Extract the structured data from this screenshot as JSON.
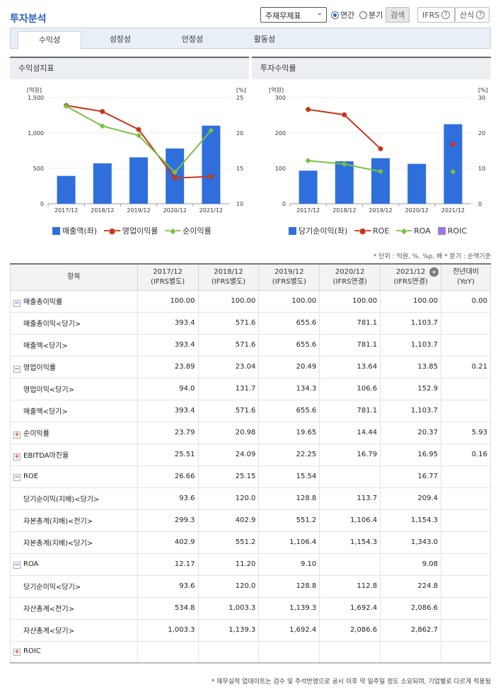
{
  "header": {
    "title": "투자분석",
    "select_value": "주재무제표",
    "radio_annual": "연간",
    "radio_quarter": "분기",
    "search_button": "검색",
    "ifrs_button": "IFRS",
    "formula_button": "산식",
    "help_glyph": "?"
  },
  "tabs": [
    "수익성",
    "성장성",
    "안정성",
    "활동성"
  ],
  "chart1": {
    "panel_title": "수익성지표",
    "left_unit": "[억원]",
    "right_unit": "[%]",
    "legend": [
      "매출액(좌)",
      "영업이익률",
      "순이익률"
    ]
  },
  "chart2": {
    "panel_title": "투자수익률",
    "left_unit": "[억원]",
    "right_unit": "[%]",
    "legend": [
      "당기순이익(좌)",
      "ROE",
      "ROA",
      "ROIC"
    ]
  },
  "chart_data": [
    {
      "type": "bar",
      "title": "수익성지표",
      "categories": [
        "2017/12",
        "2018/12",
        "2019/12",
        "2020/12",
        "2021/12"
      ],
      "series": [
        {
          "name": "매출액(좌)",
          "type": "bar",
          "axis": "left",
          "color": "#2f6fdc",
          "values": [
            393.4,
            571.6,
            655.6,
            781.1,
            1103.7
          ]
        },
        {
          "name": "영업이익률",
          "type": "line",
          "axis": "right",
          "color": "#c8361c",
          "values": [
            23.89,
            23.04,
            20.49,
            13.64,
            13.85
          ]
        },
        {
          "name": "순이익률",
          "type": "line",
          "axis": "right",
          "color": "#7ac143",
          "values": [
            23.79,
            20.98,
            19.65,
            14.44,
            20.37
          ]
        }
      ],
      "left_ylim": [
        0,
        1500
      ],
      "left_ticks": [
        "0",
        "500",
        "1,000",
        "1,500"
      ],
      "right_ylim": [
        10,
        25
      ],
      "right_ticks": [
        "10",
        "15",
        "20",
        "25"
      ]
    },
    {
      "type": "bar",
      "title": "투자수익률",
      "categories": [
        "2017/12",
        "2018/12",
        "2019/12",
        "2020/12",
        "2021/12"
      ],
      "series": [
        {
          "name": "당기순이익(좌)",
          "type": "bar",
          "axis": "left",
          "color": "#2f6fdc",
          "values": [
            93.6,
            120.0,
            128.8,
            112.8,
            224.8
          ]
        },
        {
          "name": "ROE",
          "type": "line",
          "axis": "right",
          "color": "#c8361c",
          "values": [
            26.66,
            25.15,
            15.54,
            null,
            16.77
          ]
        },
        {
          "name": "ROA",
          "type": "line",
          "axis": "right",
          "color": "#7ac143",
          "values": [
            12.17,
            11.2,
            9.1,
            null,
            9.08
          ]
        },
        {
          "name": "ROIC",
          "type": "line",
          "axis": "right",
          "color": "#9b7ad8",
          "values": [
            null,
            null,
            null,
            null,
            null
          ]
        }
      ],
      "left_ylim": [
        0,
        300
      ],
      "left_ticks": [
        "0",
        "100",
        "200",
        "300"
      ],
      "right_ylim": [
        0,
        30
      ],
      "right_ticks": [
        "0",
        "10",
        "20",
        "30"
      ]
    }
  ],
  "note": "* 단위 : 억원, %, %p, 배    * 분기 : 순액기준",
  "table": {
    "headers": [
      "항목",
      "2017/12\n(IFRS별도)",
      "2018/12\n(IFRS별도)",
      "2019/12\n(IFRS별도)",
      "2020/12\n(IFRS연결)",
      "2021/12\n(IFRS연결)",
      "전년대비\n(YoY)"
    ],
    "rows": [
      {
        "label": "매출총이익률",
        "kind": "minus",
        "vals": [
          "100.00",
          "100.00",
          "100.00",
          "100.00",
          "100.00",
          "0.00"
        ]
      },
      {
        "label": "매출총이익<당기>",
        "kind": "sub",
        "vals": [
          "393.4",
          "571.6",
          "655.6",
          "781.1",
          "1,103.7",
          ""
        ]
      },
      {
        "label": "매출액<당기>",
        "kind": "sub",
        "vals": [
          "393.4",
          "571.6",
          "655.6",
          "781.1",
          "1,103.7",
          ""
        ]
      },
      {
        "label": "영업이익률",
        "kind": "minus",
        "vals": [
          "23.89",
          "23.04",
          "20.49",
          "13.64",
          "13.85",
          "0.21"
        ]
      },
      {
        "label": "영업이익<당기>",
        "kind": "sub",
        "vals": [
          "94.0",
          "131.7",
          "134.3",
          "106.6",
          "152.9",
          ""
        ]
      },
      {
        "label": "매출액<당기>",
        "kind": "sub",
        "vals": [
          "393.4",
          "571.6",
          "655.6",
          "781.1",
          "1,103.7",
          ""
        ]
      },
      {
        "label": "순이익률",
        "kind": "plus",
        "vals": [
          "23.79",
          "20.98",
          "19.65",
          "14.44",
          "20.37",
          "5.93"
        ]
      },
      {
        "label": "EBITDA마진율",
        "kind": "plus",
        "vals": [
          "25.51",
          "24.09",
          "22.25",
          "16.79",
          "16.95",
          "0.16"
        ]
      },
      {
        "label": "ROE",
        "kind": "minus",
        "vals": [
          "26.66",
          "25.15",
          "15.54",
          "",
          "16.77",
          ""
        ]
      },
      {
        "label": "당기순이익(지배)<당기>",
        "kind": "sub",
        "vals": [
          "93.6",
          "120.0",
          "128.8",
          "113.7",
          "209.4",
          ""
        ]
      },
      {
        "label": "자본총계(지배)<전기>",
        "kind": "sub",
        "vals": [
          "299.3",
          "402.9",
          "551.2",
          "1,106.4",
          "1,154.3",
          ""
        ]
      },
      {
        "label": "자본총계(지배)<당기>",
        "kind": "sub",
        "vals": [
          "402.9",
          "551.2",
          "1,106.4",
          "1,154.3",
          "1,343.0",
          ""
        ]
      },
      {
        "label": "ROA",
        "kind": "minus",
        "vals": [
          "12.17",
          "11.20",
          "9.10",
          "",
          "9.08",
          ""
        ]
      },
      {
        "label": "당기순이익<당기>",
        "kind": "sub",
        "vals": [
          "93.6",
          "120.0",
          "128.8",
          "112.8",
          "224.8",
          ""
        ]
      },
      {
        "label": "자산총계<전기>",
        "kind": "sub",
        "vals": [
          "534.8",
          "1,003.3",
          "1,139.3",
          "1,692.4",
          "2,086.6",
          ""
        ]
      },
      {
        "label": "자산총계<당기>",
        "kind": "sub",
        "vals": [
          "1,003.3",
          "1,139.3",
          "1,692.4",
          "2,086.6",
          "2,862.7",
          ""
        ]
      },
      {
        "label": "ROIC",
        "kind": "plus",
        "vals": [
          "",
          "",
          "",
          "",
          "",
          ""
        ]
      }
    ]
  },
  "footer": "* 재무실적 업데이트는 검수 및 주석반영으로 공시 이후 약 일주일 정도 소요되며, 기업별로 다르게 적용됨"
}
